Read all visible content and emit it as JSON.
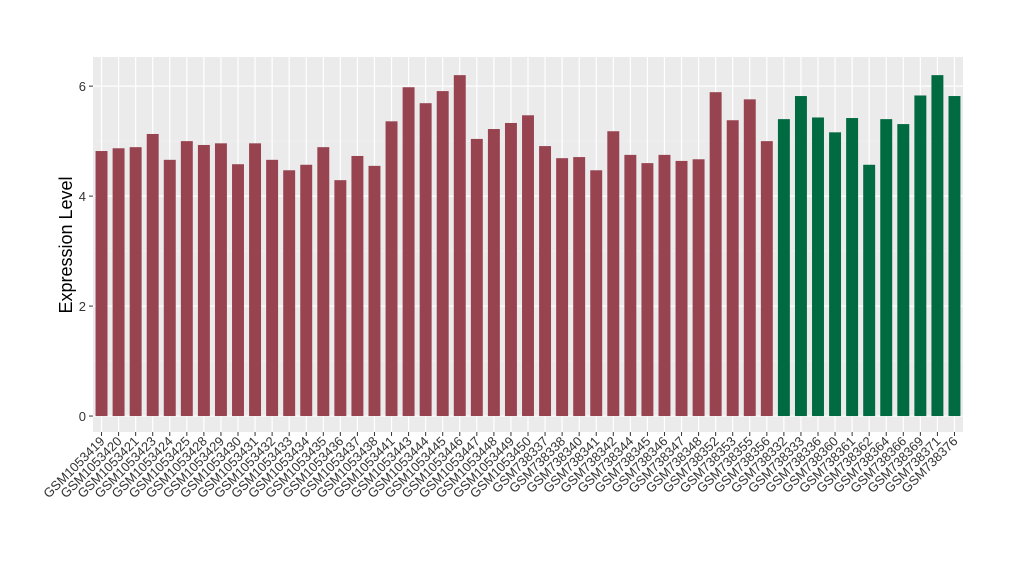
{
  "chart_data": {
    "type": "bar",
    "y_label": "Expression Level",
    "categories": [
      "GSM1053419",
      "GSM1053420",
      "GSM1053421",
      "GSM1053423",
      "GSM1053424",
      "GSM1053425",
      "GSM1053428",
      "GSM1053429",
      "GSM1053430",
      "GSM1053431",
      "GSM1053432",
      "GSM1053433",
      "GSM1053434",
      "GSM1053435",
      "GSM1053436",
      "GSM1053437",
      "GSM1053438",
      "GSM1053441",
      "GSM1053443",
      "GSM1053444",
      "GSM1053445",
      "GSM1053446",
      "GSM1053447",
      "GSM1053448",
      "GSM1053449",
      "GSM1053450",
      "GSM738337",
      "GSM738338",
      "GSM738340",
      "GSM738341",
      "GSM738342",
      "GSM738344",
      "GSM738345",
      "GSM738346",
      "GSM738347",
      "GSM738348",
      "GSM738352",
      "GSM738353",
      "GSM738355",
      "GSM738356",
      "GSM738332",
      "GSM738333",
      "GSM738336",
      "GSM738360",
      "GSM738361",
      "GSM738362",
      "GSM738364",
      "GSM738366",
      "GSM738369",
      "GSM738371",
      "GSM738376"
    ],
    "values": [
      4.82,
      4.87,
      4.89,
      5.13,
      4.66,
      5.0,
      4.93,
      4.96,
      4.58,
      4.96,
      4.66,
      4.47,
      4.57,
      4.89,
      4.29,
      4.73,
      4.55,
      5.36,
      5.98,
      5.69,
      5.91,
      6.2,
      5.04,
      5.22,
      5.33,
      5.47,
      4.91,
      4.69,
      4.71,
      4.47,
      5.18,
      4.75,
      4.6,
      4.75,
      4.64,
      4.67,
      5.89,
      5.38,
      5.76,
      5.0,
      5.4,
      5.82,
      5.43,
      5.16,
      5.42,
      4.57,
      5.4,
      5.31,
      5.83,
      6.2,
      5.82
    ],
    "colors": [
      "#984350",
      "#984350",
      "#984350",
      "#984350",
      "#984350",
      "#984350",
      "#984350",
      "#984350",
      "#984350",
      "#984350",
      "#984350",
      "#984350",
      "#984350",
      "#984350",
      "#984350",
      "#984350",
      "#984350",
      "#984350",
      "#984350",
      "#984350",
      "#984350",
      "#984350",
      "#984350",
      "#984350",
      "#984350",
      "#984350",
      "#984350",
      "#984350",
      "#984350",
      "#984350",
      "#984350",
      "#984350",
      "#984350",
      "#984350",
      "#984350",
      "#984350",
      "#984350",
      "#984350",
      "#984350",
      "#984350",
      "#006a40",
      "#006a40",
      "#006a40",
      "#006a40",
      "#006a40",
      "#006a40",
      "#006a40",
      "#006a40",
      "#006a40",
      "#006a40",
      "#006a40"
    ],
    "ylim": [
      -0.29,
      6.53
    ],
    "yticks": [
      0,
      2,
      4,
      6
    ],
    "grid": true
  }
}
